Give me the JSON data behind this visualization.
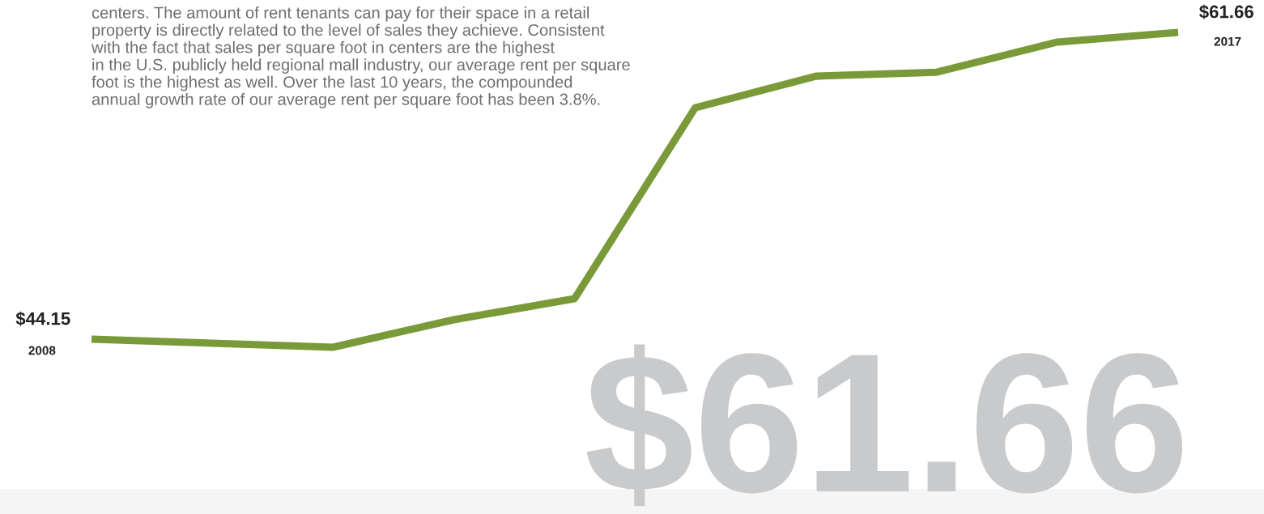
{
  "chart_data": {
    "type": "line",
    "categories": [
      "2008",
      null,
      null,
      null,
      null,
      null,
      null,
      null,
      null,
      "2017"
    ],
    "series": [
      {
        "color": "#7a9a3a",
        "values": [
          44.15,
          43.92,
          43.69,
          45.26,
          46.46,
          57.36,
          59.16,
          59.39,
          61.11,
          61.66
        ],
        "value_labels": [
          "$44.15",
          null,
          null,
          null,
          null,
          null,
          null,
          null,
          null,
          "$61.66"
        ]
      }
    ],
    "annotations": [
      "centers. The amount of rent tenants can pay for their space in a retail\nproperty is directly related to the level of sales they achieve. Consistent\nwith the fact that sales per square foot in centers are the highest\nin the U.S. publicly held regional mall industry, our average rent per square\nfoot is the highest as well. Over the last 10 years, the compounded\nannual growth rate of our average rent per square foot has been 3.8%.",
      "$61.66"
    ],
    "legend": false,
    "marker": "none",
    "line_style": "solid"
  }
}
